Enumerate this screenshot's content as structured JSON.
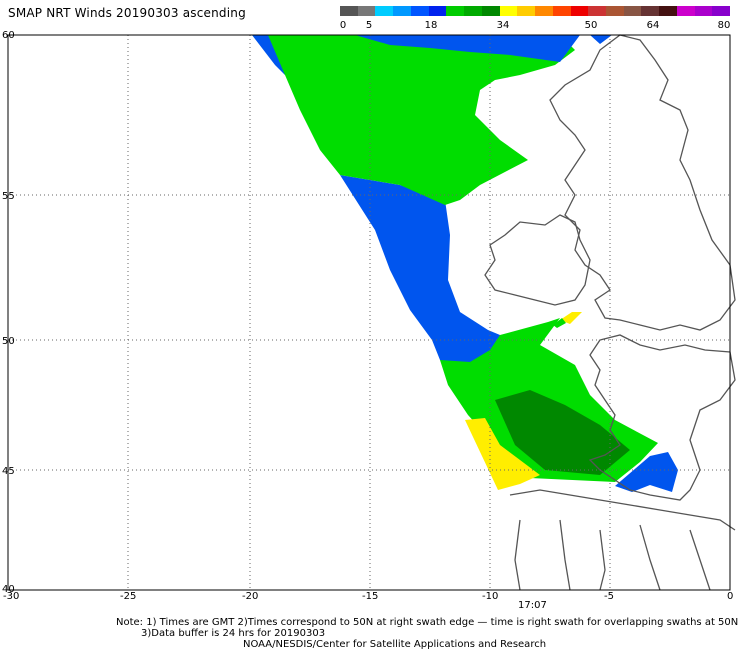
{
  "title": "SMAP NRT Winds 20190303 ascending",
  "colorbar": {
    "labels": [
      "0",
      "5",
      "18",
      "34",
      "50",
      "64",
      "80"
    ],
    "colors": [
      "#555555",
      "#777777",
      "#00ccff",
      "#0099ff",
      "#0055ff",
      "#0022ee",
      "#00cc00",
      "#00aa00",
      "#008800",
      "#ffff00",
      "#ffcc00",
      "#ff8800",
      "#ff4400",
      "#ee0000",
      "#cc3333",
      "#aa5533",
      "#885544",
      "#663333",
      "#441111",
      "#cc00cc",
      "#aa00cc",
      "#8800cc"
    ]
  },
  "map": {
    "lat_ticks": [
      "60",
      "55",
      "50",
      "45",
      "40"
    ],
    "lon_ticks": [
      "-30",
      "-25",
      "-20",
      "-15",
      "-10",
      "-5",
      "0"
    ],
    "time_label": "17:07",
    "colors": {
      "wind_green": "#00dd00",
      "wind_dark_green": "#008800",
      "wind_blue": "#0055ee",
      "wind_yellow": "#ffee00",
      "coast": "#555555"
    }
  },
  "notes": {
    "line1": "Note: 1) Times are GMT 2)Times correspond to 50N at right swath edge — time is right swath for overlapping swaths at 50N",
    "line2": "3)Data buffer is 24 hrs for 20190303",
    "line3": "NOAA/NESDIS/Center for Satellite Applications and Research"
  }
}
